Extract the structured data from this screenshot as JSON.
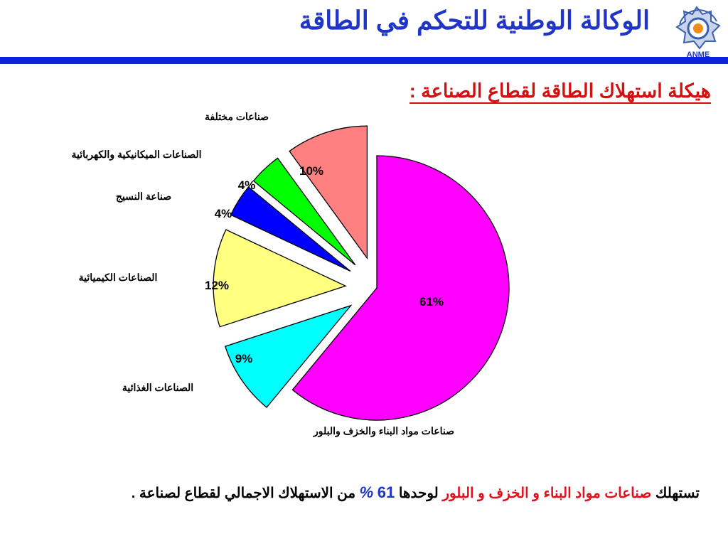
{
  "header": {
    "title": "الوكالة الوطنية للتحكم في الطاقة",
    "logo_text": "ANME"
  },
  "subtitle": "هيكلة استهلاك الطاقة لقطاع الصناعة :",
  "chart_data": {
    "type": "pie",
    "title": "",
    "slices": [
      {
        "label": "صناعات مواد البناء والخزف والبلور",
        "value": 61,
        "value_label": "61%",
        "color": "#ff00ff"
      },
      {
        "label": "الصناعات الغذائية",
        "value": 9,
        "value_label": "9%",
        "color": "#00ffff"
      },
      {
        "label": "الصناعات الكيميائية",
        "value": 12,
        "value_label": "12%",
        "color": "#ffff80"
      },
      {
        "label": "صناعة النسيج",
        "value": 4,
        "value_label": "4%",
        "color": "#0000ff"
      },
      {
        "label": "الصناعات الميكانيكية والكهربائية",
        "value": 4,
        "value_label": "4%",
        "color": "#00ff00"
      },
      {
        "label": "صناعات مختلفة",
        "value": 10,
        "value_label": "10%",
        "color": "#ff8080"
      }
    ]
  },
  "footer_note": {
    "part1": "تستهلك",
    "part2": "صناعات مواد البناء و الخزف و البلور",
    "part3": "لوحدها",
    "value": "61",
    "percent": "%",
    "part4": "من الاستهلاك الاجمالي لقطاع لصناعة ."
  },
  "colors": {
    "header_blue": "#1f35c8",
    "rule_blue": "#0d23d9",
    "subtitle_red": "#d40f0f",
    "accent_red": "#e1101b"
  }
}
